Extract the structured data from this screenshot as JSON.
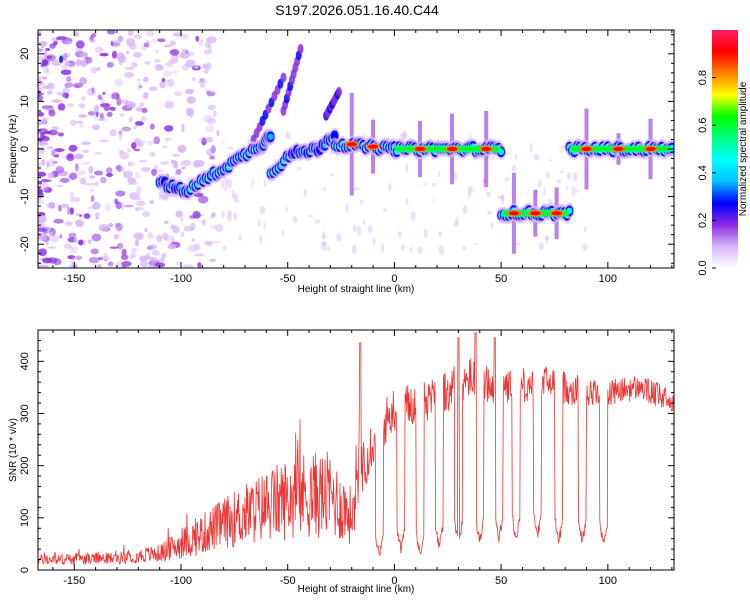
{
  "title": "S197.2026.051.16.40.C44",
  "chart_data": [
    {
      "type": "heatmap",
      "name": "spectrogram",
      "xlabel": "Height of straight line (km)",
      "ylabel": "Frequency (Hz)",
      "xlim": [
        -167,
        131
      ],
      "ylim": [
        -25,
        25
      ],
      "xticks": [
        -150,
        -100,
        -50,
        0,
        50,
        100
      ],
      "yticks": [
        -20,
        -10,
        0,
        10,
        20
      ],
      "colorbar": {
        "label": "Normalized spectral amplitude",
        "range": [
          0,
          1
        ],
        "ticks": [
          "0.0",
          "0.2",
          "0.4",
          "0.6",
          "0.8"
        ],
        "colors": [
          "#ffffff",
          "#d7b4fa",
          "#8a2be2",
          "#0000ff",
          "#00bfff",
          "#00ffff",
          "#00ff80",
          "#00ff00",
          "#ffff00",
          "#ff8000",
          "#ff0000",
          "#ff1a66"
        ]
      },
      "ridge_segments": [
        {
          "x": [
            -110,
            -98
          ],
          "y": [
            -7,
            -9
          ],
          "amplitude": 0.3
        },
        {
          "x": [
            -98,
            -62
          ],
          "y": [
            -9,
            1
          ],
          "amplitude": 0.4
        },
        {
          "x": [
            -62,
            -58
          ],
          "y": [
            1,
            3
          ],
          "amplitude": 0.3
        },
        {
          "x": [
            -58,
            -48
          ],
          "y": [
            -5,
            -1
          ],
          "amplitude": 0.4
        },
        {
          "x": [
            -48,
            -36
          ],
          "y": [
            -1,
            0
          ],
          "amplitude": 0.3
        },
        {
          "x": [
            -36,
            -28
          ],
          "y": [
            0,
            3
          ],
          "amplitude": 0.3
        },
        {
          "x": [
            -28,
            0
          ],
          "y": [
            1,
            0
          ],
          "amplitude": 0.55
        },
        {
          "x": [
            0,
            50
          ],
          "y": [
            0,
            0
          ],
          "amplitude": 0.75
        },
        {
          "x": [
            50,
            82
          ],
          "y": [
            -13.5,
            -13.5
          ],
          "amplitude": 0.9
        },
        {
          "x": [
            82,
            130
          ],
          "y": [
            0,
            0
          ],
          "amplitude": 0.9
        }
      ],
      "diagonal_streaks": [
        {
          "x": [
            -66,
            -52
          ],
          "y": [
            2,
            15
          ]
        },
        {
          "x": [
            -52,
            -44
          ],
          "y": [
            8,
            21
          ]
        },
        {
          "x": [
            -32,
            -26
          ],
          "y": [
            7,
            12
          ]
        }
      ],
      "hot_spots": [
        {
          "x": -20,
          "y": 1
        },
        {
          "x": -10,
          "y": 0.5
        },
        {
          "x": 12,
          "y": 0
        },
        {
          "x": 27,
          "y": 0
        },
        {
          "x": 43,
          "y": 0
        },
        {
          "x": 56,
          "y": -13.5
        },
        {
          "x": 66,
          "y": -13.5
        },
        {
          "x": 76,
          "y": -13.5
        },
        {
          "x": 90,
          "y": 0
        },
        {
          "x": 105,
          "y": 0
        },
        {
          "x": 120,
          "y": 0
        }
      ]
    },
    {
      "type": "line",
      "name": "snr",
      "xlabel": "Height of straight line (km)",
      "ylabel": "SNR (10 * v/v)",
      "xlim": [
        -167,
        131
      ],
      "ylim": [
        0,
        460
      ],
      "xticks": [
        -150,
        -100,
        -50,
        0,
        50,
        100
      ],
      "yticks": [
        0,
        100,
        200,
        300,
        400
      ],
      "color": "#ee3333",
      "envelope": [
        {
          "x": -167,
          "base": 15,
          "spread": 15
        },
        {
          "x": -130,
          "base": 18,
          "spread": 16
        },
        {
          "x": -110,
          "base": 25,
          "spread": 25
        },
        {
          "x": -95,
          "base": 45,
          "spread": 50
        },
        {
          "x": -80,
          "base": 70,
          "spread": 70
        },
        {
          "x": -60,
          "base": 95,
          "spread": 100
        },
        {
          "x": -45,
          "base": 110,
          "spread": 120
        },
        {
          "x": -30,
          "base": 110,
          "spread": 120
        },
        {
          "x": -20,
          "base": 80,
          "spread": 80
        },
        {
          "x": -16,
          "base": 200,
          "spread": 140
        },
        {
          "x": -10,
          "base": 250,
          "spread": 100
        },
        {
          "x": 0,
          "base": 310,
          "spread": 90
        },
        {
          "x": 20,
          "base": 330,
          "spread": 80
        },
        {
          "x": 35,
          "base": 370,
          "spread": 80
        },
        {
          "x": 50,
          "base": 350,
          "spread": 70
        },
        {
          "x": 70,
          "base": 360,
          "spread": 70
        },
        {
          "x": 90,
          "base": 340,
          "spread": 60
        },
        {
          "x": 100,
          "base": 340,
          "spread": 50
        },
        {
          "x": 115,
          "base": 350,
          "spread": 50
        },
        {
          "x": 131,
          "base": 320,
          "spread": 50
        }
      ],
      "dips": [
        {
          "x": -7,
          "y": 25
        },
        {
          "x": 3,
          "y": 40
        },
        {
          "x": 12,
          "y": 30
        },
        {
          "x": 21,
          "y": 45
        },
        {
          "x": 30,
          "y": 50
        },
        {
          "x": 40,
          "y": 55
        },
        {
          "x": 49,
          "y": 60
        },
        {
          "x": 57,
          "y": 60
        },
        {
          "x": 67,
          "y": 65
        },
        {
          "x": 77,
          "y": 55
        },
        {
          "x": 88,
          "y": 55
        },
        {
          "x": 98,
          "y": 50
        }
      ],
      "peaks": [
        {
          "x": -16,
          "y": 435
        },
        {
          "x": 30,
          "y": 445
        },
        {
          "x": 38,
          "y": 455
        },
        {
          "x": 47,
          "y": 445
        }
      ]
    }
  ]
}
